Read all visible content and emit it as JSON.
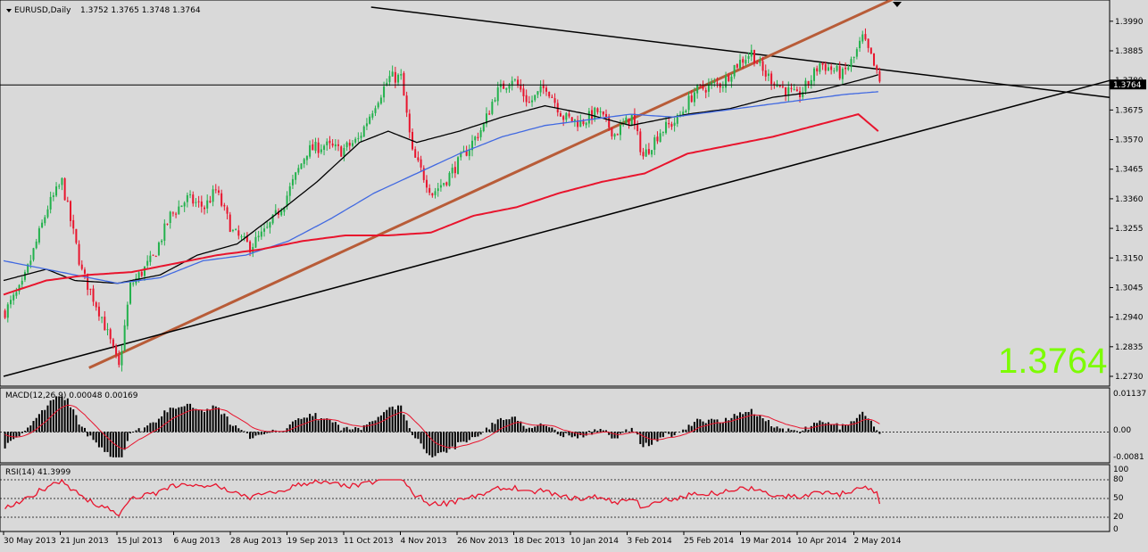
{
  "header": {
    "symbol_label": "EURUSD,Daily",
    "ohlc_label": "1.3752 1.3765 1.3748 1.3764"
  },
  "big_price": "1.3764",
  "current_price_tag": "1.3764",
  "macd": {
    "label": "MACD(12,26,9) 0.00048 0.00169",
    "ticks": [
      "0.01137",
      "0.00",
      "-0.0081"
    ]
  },
  "rsi": {
    "label": "RSI(14) 41.3999",
    "ticks": [
      "100",
      "80",
      "50",
      "20",
      "0"
    ]
  },
  "colors": {
    "background": "#d9d9d9",
    "bull": "#22b14c",
    "bear": "#e8142d",
    "ma_black": "#000000",
    "ma_blue": "#4169e1",
    "ma_red": "#e8142d",
    "trendline_brown": "#b85c38",
    "big_price": "#7cfc00"
  },
  "chart_data": {
    "type": "candlestick",
    "symbol": "EURUSD",
    "timeframe": "Daily",
    "ylim": [
      1.273,
      1.404
    ],
    "y_ticks": [
      1.399,
      1.3885,
      1.378,
      1.3675,
      1.357,
      1.3465,
      1.336,
      1.3255,
      1.315,
      1.3045,
      1.294,
      1.2835,
      1.273
    ],
    "x_tick_labels": [
      "30 May 2013",
      "21 Jun 2013",
      "15 Jul 2013",
      "6 Aug 2013",
      "28 Aug 2013",
      "19 Sep 2013",
      "11 Oct 2013",
      "4 Nov 2013",
      "26 Nov 2013",
      "18 Dec 2013",
      "10 Jan 2014",
      "3 Feb 2014",
      "25 Feb 2014",
      "19 Mar 2014",
      "10 Apr 2014",
      "2 May 2014"
    ],
    "ohlc_anchor_path": [
      [
        0,
        1.296
      ],
      [
        6,
        1.305
      ],
      [
        15,
        1.333
      ],
      [
        20,
        1.342
      ],
      [
        27,
        1.31
      ],
      [
        34,
        1.294
      ],
      [
        40,
        1.276
      ],
      [
        44,
        1.305
      ],
      [
        52,
        1.315
      ],
      [
        58,
        1.33
      ],
      [
        64,
        1.336
      ],
      [
        70,
        1.333
      ],
      [
        74,
        1.339
      ],
      [
        80,
        1.324
      ],
      [
        86,
        1.319
      ],
      [
        92,
        1.325
      ],
      [
        98,
        1.335
      ],
      [
        106,
        1.353
      ],
      [
        112,
        1.355
      ],
      [
        118,
        1.353
      ],
      [
        124,
        1.357
      ],
      [
        130,
        1.37
      ],
      [
        135,
        1.379
      ],
      [
        139,
        1.379
      ],
      [
        143,
        1.352
      ],
      [
        150,
        1.338
      ],
      [
        155,
        1.343
      ],
      [
        162,
        1.353
      ],
      [
        168,
        1.362
      ],
      [
        172,
        1.373
      ],
      [
        178,
        1.379
      ],
      [
        184,
        1.37
      ],
      [
        190,
        1.376
      ],
      [
        196,
        1.365
      ],
      [
        202,
        1.363
      ],
      [
        208,
        1.367
      ],
      [
        214,
        1.359
      ],
      [
        220,
        1.365
      ],
      [
        224,
        1.351
      ],
      [
        230,
        1.36
      ],
      [
        236,
        1.364
      ],
      [
        242,
        1.374
      ],
      [
        247,
        1.376
      ],
      [
        252,
        1.377
      ],
      [
        256,
        1.383
      ],
      [
        262,
        1.388
      ],
      [
        266,
        1.381
      ],
      [
        272,
        1.376
      ],
      [
        278,
        1.372
      ],
      [
        282,
        1.377
      ],
      [
        286,
        1.384
      ],
      [
        290,
        1.382
      ],
      [
        294,
        1.38
      ],
      [
        298,
        1.386
      ],
      [
        301,
        1.393
      ],
      [
        304,
        1.386
      ],
      [
        307,
        1.377
      ]
    ],
    "series": [
      {
        "type": "line",
        "anchors": [
          [
            0,
            1.307
          ],
          [
            15,
            1.311
          ],
          [
            25,
            1.307
          ],
          [
            40,
            1.306
          ],
          [
            55,
            1.309
          ],
          [
            68,
            1.316
          ],
          [
            82,
            1.32
          ],
          [
            95,
            1.33
          ],
          [
            110,
            1.342
          ],
          [
            125,
            1.356
          ],
          [
            135,
            1.36
          ],
          [
            145,
            1.356
          ],
          [
            160,
            1.36
          ],
          [
            175,
            1.365
          ],
          [
            190,
            1.369
          ],
          [
            205,
            1.366
          ],
          [
            220,
            1.362
          ],
          [
            240,
            1.366
          ],
          [
            255,
            1.368
          ],
          [
            270,
            1.372
          ],
          [
            285,
            1.374
          ],
          [
            300,
            1.378
          ],
          [
            307,
            1.38
          ]
        ]
      },
      {
        "type": "line",
        "anchors": [
          [
            0,
            1.314
          ],
          [
            10,
            1.312
          ],
          [
            25,
            1.309
          ],
          [
            40,
            1.306
          ],
          [
            55,
            1.308
          ],
          [
            70,
            1.314
          ],
          [
            85,
            1.316
          ],
          [
            100,
            1.321
          ],
          [
            115,
            1.329
          ],
          [
            130,
            1.338
          ],
          [
            145,
            1.345
          ],
          [
            160,
            1.352
          ],
          [
            175,
            1.358
          ],
          [
            190,
            1.362
          ],
          [
            205,
            1.364
          ],
          [
            220,
            1.366
          ],
          [
            235,
            1.365
          ],
          [
            250,
            1.367
          ],
          [
            265,
            1.369
          ],
          [
            280,
            1.371
          ],
          [
            295,
            1.373
          ],
          [
            307,
            1.374
          ]
        ]
      },
      {
        "type": "line",
        "anchors": [
          [
            0,
            1.302
          ],
          [
            15,
            1.307
          ],
          [
            30,
            1.309
          ],
          [
            45,
            1.31
          ],
          [
            60,
            1.313
          ],
          [
            75,
            1.316
          ],
          [
            90,
            1.318
          ],
          [
            105,
            1.321
          ],
          [
            120,
            1.323
          ],
          [
            135,
            1.323
          ],
          [
            150,
            1.324
          ],
          [
            165,
            1.33
          ],
          [
            180,
            1.333
          ],
          [
            195,
            1.338
          ],
          [
            210,
            1.342
          ],
          [
            225,
            1.345
          ],
          [
            240,
            1.352
          ],
          [
            255,
            1.355
          ],
          [
            270,
            1.358
          ],
          [
            285,
            1.362
          ],
          [
            300,
            1.366
          ],
          [
            307,
            1.36
          ]
        ]
      }
    ],
    "lines": [
      {
        "type": "trendline",
        "color": "black",
        "from": [
          129,
          1.404
        ],
        "to": [
          307,
          1.382
        ]
      },
      {
        "type": "trendline",
        "color": "brown",
        "from": [
          30,
          1.276
        ],
        "to": [
          278,
          1.391
        ]
      },
      {
        "type": "trendline",
        "color": "black",
        "from": [
          0,
          1.273
        ],
        "to": [
          307,
          1.356
        ]
      },
      {
        "type": "horizontal",
        "value": 1.3764
      }
    ],
    "macd": {
      "ylim": [
        -0.0081,
        0.01137
      ],
      "zero_level": 0.0,
      "signal_color": "red",
      "histogram_color": "black"
    },
    "rsi": {
      "ylim": [
        0,
        100
      ],
      "levels": [
        80,
        50,
        20
      ],
      "line_color": "red",
      "last_value": 41.3999
    }
  }
}
